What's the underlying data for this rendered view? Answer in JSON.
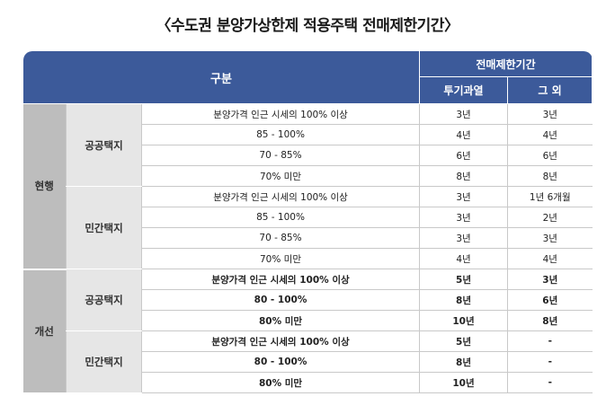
{
  "title": "〈수도권 분양가상한제 적용주택 전매제한기간〉",
  "header": {
    "category": "구분",
    "period": "전매제한기간",
    "overheated": "투기과열",
    "others": "그 외"
  },
  "groups": {
    "current": "현행",
    "improved": "개선"
  },
  "subgroups": {
    "public1": "공공택지",
    "private1": "민간택지",
    "public2": "공공택지",
    "private2": "민간택지"
  },
  "rows": [
    {
      "cond": "분양가격 인근 시세의 100% 이상",
      "a": "3년",
      "b": "3년"
    },
    {
      "cond": "85 - 100%",
      "a": "4년",
      "b": "4년"
    },
    {
      "cond": "70 - 85%",
      "a": "6년",
      "b": "6년"
    },
    {
      "cond": "70% 미만",
      "a": "8년",
      "b": "8년"
    },
    {
      "cond": "분양가격 인근 시세의 100% 이상",
      "a": "3년",
      "b": "1년 6개월"
    },
    {
      "cond": "85 - 100%",
      "a": "3년",
      "b": "2년"
    },
    {
      "cond": "70 - 85%",
      "a": "3년",
      "b": "3년"
    },
    {
      "cond": "70% 미만",
      "a": "4년",
      "b": "4년"
    },
    {
      "cond": "분양가격 인근 시세의 100% 이상",
      "a": "5년",
      "b": "3년"
    },
    {
      "cond": "80 - 100%",
      "a": "8년",
      "b": "6년"
    },
    {
      "cond": "80% 미만",
      "a": "10년",
      "b": "8년"
    },
    {
      "cond": "분양가격 인근 시세의 100% 이상",
      "a": "5년",
      "b": "-"
    },
    {
      "cond": "80 - 100%",
      "a": "8년",
      "b": "-"
    },
    {
      "cond": "80% 미만",
      "a": "10년",
      "b": "-"
    }
  ]
}
